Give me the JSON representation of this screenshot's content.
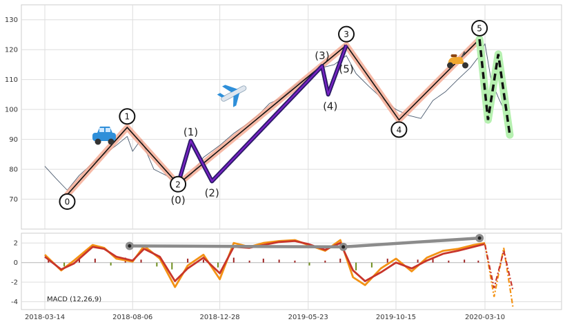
{
  "chart_data": [
    {
      "type": "line",
      "title": "",
      "subtitle": "",
      "xlabel": "",
      "ylabel": "",
      "xlim": [
        "2018-03-14",
        "2020-07-20"
      ],
      "ylim": [
        60,
        135
      ],
      "grid": true,
      "x_ticks": [
        "2018-03-14",
        "2018-08-06",
        "2018-12-28",
        "2019-05-23",
        "2019-10-15",
        "2020-03-10"
      ],
      "y_ticks": [
        70,
        80,
        90,
        100,
        110,
        120,
        130
      ],
      "price_series": {
        "x": [
          "2018-03-14",
          "2018-04-01",
          "2018-04-20",
          "2018-05-10",
          "2018-06-01",
          "2018-06-20",
          "2018-07-10",
          "2018-07-28",
          "2018-08-06",
          "2018-08-20",
          "2018-09-10",
          "2018-09-30",
          "2018-10-20",
          "2018-11-10",
          "2018-12-01",
          "2018-12-28",
          "2019-01-20",
          "2019-02-10",
          "2019-03-01",
          "2019-03-20",
          "2019-04-10",
          "2019-05-01",
          "2019-05-23",
          "2019-06-15",
          "2019-07-05",
          "2019-07-25",
          "2019-08-10",
          "2019-08-30",
          "2019-09-20",
          "2019-10-15",
          "2019-11-05",
          "2019-11-25",
          "2019-12-15",
          "2020-01-05",
          "2020-01-25",
          "2020-02-15",
          "2020-03-01",
          "2020-03-10",
          "2020-03-20",
          "2020-04-01",
          "2020-04-10",
          "2020-04-20"
        ],
        "values": [
          81,
          77,
          73,
          78,
          82,
          85,
          88,
          91,
          86,
          90,
          80,
          78,
          75,
          78,
          84,
          88,
          92,
          95,
          98,
          102,
          104,
          108,
          111,
          114,
          115,
          118,
          112,
          108,
          104,
          100,
          98,
          97,
          103,
          106,
          110,
          114,
          118,
          122,
          110,
          104,
          100,
          97
        ]
      },
      "elliott_wave": {
        "points": [
          {
            "label": "0",
            "x": "2018-04-20",
            "y": 71.5
          },
          {
            "label": "1",
            "x": "2018-07-28",
            "y": 94
          },
          {
            "label": "2",
            "x": "2018-10-20",
            "y": 75
          },
          {
            "label": "3",
            "x": "2019-07-25",
            "y": 121.5
          },
          {
            "label": "4",
            "x": "2019-10-20",
            "y": 96.5
          },
          {
            "label": "5",
            "x": "2020-03-01",
            "y": 123.5
          }
        ]
      },
      "sub_wave": {
        "points": [
          {
            "label": "(0)",
            "x": "2018-10-20",
            "y": 75
          },
          {
            "label": "(1)",
            "x": "2018-11-10",
            "y": 89.5
          },
          {
            "label": "(2)",
            "x": "2018-12-15",
            "y": 76
          },
          {
            "label": "(3)",
            "x": "2019-06-15",
            "y": 114.5
          },
          {
            "label": "(4)",
            "x": "2019-06-25",
            "y": 105
          },
          {
            "label": "(5)",
            "x": "2019-07-25",
            "y": 121.5
          }
        ]
      },
      "forecast": {
        "x": [
          "2020-03-01",
          "2020-03-15",
          "2020-04-01",
          "2020-04-20"
        ],
        "values": [
          123.5,
          96.5,
          118.5,
          91.5
        ]
      },
      "icons": [
        "car-icon",
        "airplane-icon",
        "scooter-icon"
      ],
      "colors": {
        "price": "#4a5a6e",
        "wave_band": "#f4a890",
        "wave_line": "#111111",
        "sub_wave_outer": "#2d1b69",
        "sub_wave_inner": "#7a22c8",
        "forecast_band": "#b6f0b0",
        "forecast_line": "#111111",
        "circle_stroke": "#111111"
      }
    },
    {
      "type": "line",
      "title": "",
      "annotation": "MACD (12,26,9)",
      "xlim": [
        "2018-03-14",
        "2020-07-20"
      ],
      "ylim": [
        -4.8,
        3.0
      ],
      "grid": true,
      "y_ticks": [
        -4,
        -2,
        0,
        2
      ],
      "x_ticks": [
        "2018-03-14",
        "2018-08-06",
        "2018-12-28",
        "2019-05-23",
        "2019-10-15",
        "2020-03-10"
      ],
      "macd": {
        "x": [
          "2018-03-14",
          "2018-04-10",
          "2018-05-01",
          "2018-06-01",
          "2018-06-20",
          "2018-07-10",
          "2018-08-06",
          "2018-08-25",
          "2018-09-20",
          "2018-10-15",
          "2018-11-05",
          "2018-12-01",
          "2018-12-28",
          "2019-01-20",
          "2019-02-15",
          "2019-03-10",
          "2019-04-05",
          "2019-05-01",
          "2019-05-23",
          "2019-06-20",
          "2019-07-15",
          "2019-08-05",
          "2019-08-25",
          "2019-09-20",
          "2019-10-15",
          "2019-11-10",
          "2019-12-05",
          "2020-01-01",
          "2020-01-25",
          "2020-02-20",
          "2020-03-10"
        ],
        "values": [
          0.8,
          -0.8,
          0.2,
          1.8,
          1.5,
          0.4,
          0.1,
          1.7,
          0.4,
          -2.5,
          -0.3,
          0.8,
          -1.7,
          2.0,
          1.6,
          2.0,
          2.2,
          2.3,
          1.8,
          1.2,
          2.3,
          -1.5,
          -2.3,
          -0.6,
          0.4,
          -0.9,
          0.5,
          1.2,
          1.4,
          1.8,
          2.0
        ]
      },
      "signal": {
        "x": [
          "2018-03-14",
          "2018-04-10",
          "2018-05-01",
          "2018-06-01",
          "2018-06-20",
          "2018-07-10",
          "2018-08-06",
          "2018-08-25",
          "2018-09-20",
          "2018-10-15",
          "2018-11-05",
          "2018-12-01",
          "2018-12-28",
          "2019-01-20",
          "2019-02-15",
          "2019-03-10",
          "2019-04-05",
          "2019-05-01",
          "2019-05-23",
          "2019-06-20",
          "2019-07-15",
          "2019-08-05",
          "2019-08-25",
          "2019-09-20",
          "2019-10-15",
          "2019-11-10",
          "2019-12-05",
          "2020-01-01",
          "2020-01-25",
          "2020-02-20",
          "2020-03-10"
        ],
        "values": [
          0.6,
          -0.7,
          -0.1,
          1.6,
          1.4,
          0.6,
          0.2,
          1.4,
          0.6,
          -1.9,
          -0.6,
          0.5,
          -1.1,
          1.6,
          1.5,
          1.8,
          2.1,
          2.2,
          1.9,
          1.3,
          2.0,
          -0.8,
          -1.9,
          -1.0,
          0.0,
          -0.6,
          0.2,
          0.9,
          1.2,
          1.6,
          1.9
        ]
      },
      "histogram": {
        "x": [
          "2018-03-20",
          "2018-04-15",
          "2018-05-10",
          "2018-06-05",
          "2018-07-01",
          "2018-07-25",
          "2018-08-20",
          "2018-09-15",
          "2018-10-10",
          "2018-11-05",
          "2018-12-01",
          "2018-12-25",
          "2019-01-20",
          "2019-02-15",
          "2019-03-10",
          "2019-04-05",
          "2019-05-01",
          "2019-05-25",
          "2019-06-20",
          "2019-07-15",
          "2019-08-10",
          "2019-09-05",
          "2019-10-01",
          "2019-10-25",
          "2019-11-20",
          "2019-12-15",
          "2020-01-10",
          "2020-02-05",
          "2020-02-28"
        ],
        "values": [
          0.3,
          -0.4,
          0.5,
          0.4,
          -0.3,
          0.5,
          0.3,
          -0.4,
          -0.7,
          0.4,
          0.3,
          -0.5,
          0.5,
          0.2,
          0.4,
          0.3,
          0.2,
          -0.3,
          0.2,
          0.4,
          -0.8,
          -0.5,
          0.4,
          -0.3,
          0.3,
          0.4,
          0.2,
          0.3,
          0.2
        ]
      },
      "divergence_line": {
        "x": [
          "2018-08-01",
          "2019-07-20",
          "2020-03-01"
        ],
        "values": [
          1.7,
          1.6,
          2.5
        ]
      },
      "forecast_macd": {
        "x": [
          "2020-03-10",
          "2020-03-25",
          "2020-04-10",
          "2020-04-25"
        ],
        "values": [
          1.9,
          -3.5,
          1.5,
          -4.5
        ]
      },
      "forecast_signal": {
        "x": [
          "2020-03-10",
          "2020-03-25",
          "2020-04-10",
          "2020-04-25"
        ],
        "values": [
          1.8,
          -2.6,
          1.2,
          -2.8
        ]
      },
      "colors": {
        "macd": "#f39214",
        "signal": "#c8352a",
        "hist_positive": "#a02323",
        "hist_negative": "#6e8e1e",
        "divergence": "#8c8c8c"
      }
    }
  ]
}
